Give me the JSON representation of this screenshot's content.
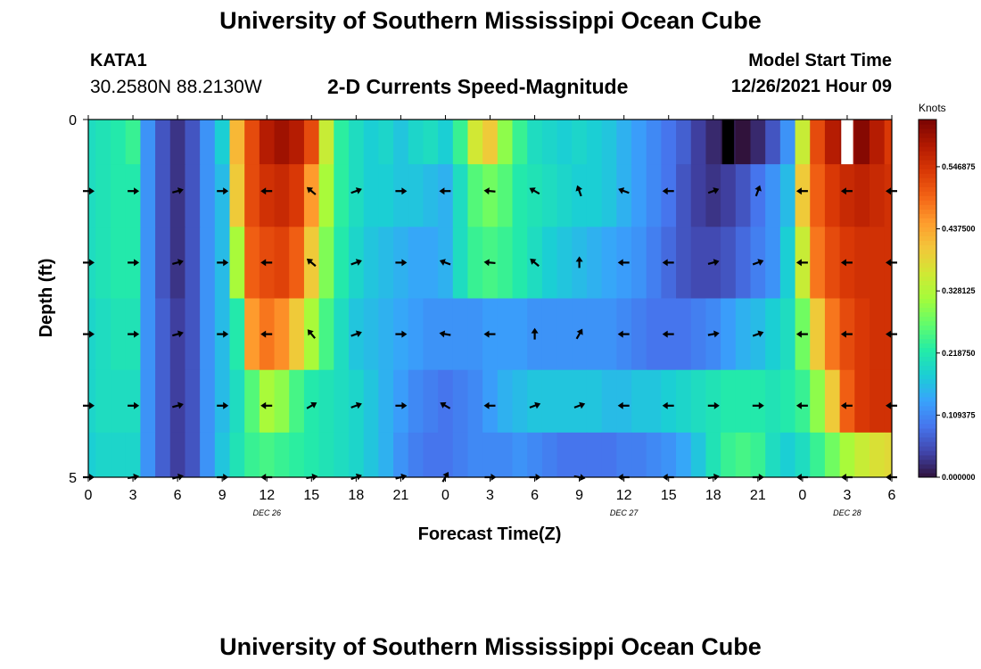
{
  "header": {
    "title": "University of Southern Mississippi Ocean Cube",
    "station": "KATA1",
    "coords": "30.2580N  88.2130W",
    "subtitle": "2-D Currents Speed-Magnitude",
    "model_start_label": "Model Start Time",
    "model_start_value": "12/26/2021 Hour 09",
    "footer_title": "University of Southern Mississippi Ocean Cube"
  },
  "chart_data": {
    "type": "heatmap",
    "title": "2-D Currents Speed-Magnitude",
    "xlabel": "Forecast Time(Z)",
    "ylabel": "Depth (ft)",
    "x_hours": [
      0,
      1,
      2,
      3,
      4,
      5,
      6,
      7,
      8,
      9,
      10,
      11,
      12,
      13,
      14,
      15,
      16,
      17,
      18,
      19,
      20,
      21,
      22,
      23,
      24,
      25,
      26,
      27,
      28,
      29,
      30,
      31,
      32,
      33,
      34,
      35,
      36,
      37,
      38,
      39,
      40,
      41,
      42,
      43,
      44,
      45,
      46,
      47,
      48,
      49,
      50,
      51,
      52,
      53,
      54
    ],
    "x_ticks": [
      {
        "hour": 0,
        "label": "0"
      },
      {
        "hour": 3,
        "label": "3"
      },
      {
        "hour": 6,
        "label": "6"
      },
      {
        "hour": 9,
        "label": "9"
      },
      {
        "hour": 12,
        "label": "12"
      },
      {
        "hour": 15,
        "label": "15"
      },
      {
        "hour": 18,
        "label": "18"
      },
      {
        "hour": 21,
        "label": "21"
      },
      {
        "hour": 24,
        "label": "0"
      },
      {
        "hour": 27,
        "label": "3"
      },
      {
        "hour": 30,
        "label": "6"
      },
      {
        "hour": 33,
        "label": "9"
      },
      {
        "hour": 36,
        "label": "12"
      },
      {
        "hour": 39,
        "label": "15"
      },
      {
        "hour": 42,
        "label": "18"
      },
      {
        "hour": 45,
        "label": "21"
      },
      {
        "hour": 48,
        "label": "0"
      },
      {
        "hour": 51,
        "label": "3"
      },
      {
        "hour": 54,
        "label": "6"
      }
    ],
    "date_labels": [
      {
        "hour": 12,
        "label": "DEC 26"
      },
      {
        "hour": 36,
        "label": "DEC 27"
      },
      {
        "hour": 51,
        "label": "DEC 28"
      }
    ],
    "y_ticks": [
      {
        "depth": 0,
        "label": "0"
      },
      {
        "depth": 5,
        "label": "5"
      }
    ],
    "ylim": [
      0,
      5
    ],
    "depth_rows": [
      0.25,
      1,
      2,
      3,
      4,
      4.75
    ],
    "speed_knots": [
      [
        0.2,
        0.21,
        0.22,
        0.24,
        0.12,
        0.06,
        0.03,
        0.06,
        0.12,
        0.18,
        0.42,
        0.52,
        0.58,
        0.6,
        0.58,
        0.52,
        0.35,
        0.23,
        0.2,
        0.18,
        0.19,
        0.17,
        0.19,
        0.2,
        0.18,
        0.24,
        0.36,
        0.4,
        0.3,
        0.24,
        0.2,
        0.19,
        0.18,
        0.19,
        0.18,
        0.17,
        0.15,
        0.13,
        0.11,
        0.09,
        0.07,
        0.04,
        0.02,
        0.01,
        0.0,
        0.02,
        0.06,
        0.12,
        0.35,
        0.52,
        0.58,
        0.6,
        0.62,
        0.58,
        0.54
      ],
      [
        0.2,
        0.21,
        0.22,
        0.22,
        0.12,
        0.06,
        0.03,
        0.06,
        0.12,
        0.16,
        0.4,
        0.52,
        0.55,
        0.56,
        0.54,
        0.45,
        0.32,
        0.23,
        0.2,
        0.18,
        0.18,
        0.17,
        0.17,
        0.16,
        0.15,
        0.2,
        0.26,
        0.28,
        0.26,
        0.22,
        0.21,
        0.2,
        0.19,
        0.18,
        0.18,
        0.17,
        0.15,
        0.13,
        0.11,
        0.09,
        0.06,
        0.04,
        0.03,
        0.04,
        0.06,
        0.09,
        0.12,
        0.16,
        0.4,
        0.5,
        0.54,
        0.56,
        0.57,
        0.56,
        0.55
      ],
      [
        0.2,
        0.21,
        0.22,
        0.22,
        0.12,
        0.06,
        0.03,
        0.06,
        0.12,
        0.16,
        0.32,
        0.5,
        0.52,
        0.53,
        0.5,
        0.4,
        0.29,
        0.22,
        0.19,
        0.17,
        0.16,
        0.15,
        0.14,
        0.14,
        0.15,
        0.2,
        0.24,
        0.25,
        0.24,
        0.22,
        0.2,
        0.18,
        0.17,
        0.16,
        0.15,
        0.14,
        0.13,
        0.12,
        0.1,
        0.08,
        0.06,
        0.05,
        0.05,
        0.06,
        0.08,
        0.1,
        0.12,
        0.18,
        0.35,
        0.48,
        0.52,
        0.54,
        0.55,
        0.55,
        0.55
      ],
      [
        0.19,
        0.2,
        0.21,
        0.21,
        0.12,
        0.07,
        0.04,
        0.06,
        0.12,
        0.16,
        0.22,
        0.45,
        0.48,
        0.46,
        0.4,
        0.32,
        0.25,
        0.2,
        0.17,
        0.16,
        0.15,
        0.14,
        0.13,
        0.12,
        0.12,
        0.12,
        0.12,
        0.13,
        0.13,
        0.13,
        0.12,
        0.12,
        0.12,
        0.12,
        0.12,
        0.12,
        0.11,
        0.1,
        0.09,
        0.09,
        0.09,
        0.1,
        0.11,
        0.13,
        0.15,
        0.16,
        0.18,
        0.2,
        0.28,
        0.4,
        0.48,
        0.52,
        0.54,
        0.55,
        0.55
      ],
      [
        0.19,
        0.2,
        0.2,
        0.2,
        0.12,
        0.07,
        0.04,
        0.06,
        0.12,
        0.16,
        0.2,
        0.26,
        0.32,
        0.3,
        0.25,
        0.22,
        0.21,
        0.2,
        0.19,
        0.17,
        0.15,
        0.13,
        0.11,
        0.1,
        0.09,
        0.1,
        0.11,
        0.13,
        0.15,
        0.16,
        0.17,
        0.17,
        0.17,
        0.17,
        0.17,
        0.16,
        0.16,
        0.17,
        0.17,
        0.18,
        0.19,
        0.2,
        0.21,
        0.22,
        0.22,
        0.22,
        0.21,
        0.22,
        0.24,
        0.3,
        0.4,
        0.5,
        0.54,
        0.55,
        0.55
      ],
      [
        0.18,
        0.19,
        0.19,
        0.19,
        0.12,
        0.07,
        0.04,
        0.06,
        0.12,
        0.17,
        0.21,
        0.24,
        0.25,
        0.24,
        0.23,
        0.22,
        0.21,
        0.2,
        0.19,
        0.17,
        0.15,
        0.12,
        0.1,
        0.09,
        0.09,
        0.1,
        0.11,
        0.11,
        0.11,
        0.12,
        0.11,
        0.1,
        0.09,
        0.09,
        0.09,
        0.09,
        0.1,
        0.1,
        0.11,
        0.12,
        0.14,
        0.17,
        0.21,
        0.24,
        0.25,
        0.24,
        0.2,
        0.18,
        0.2,
        0.24,
        0.28,
        0.32,
        0.35,
        0.37,
        0.38
      ]
    ],
    "missing_cells": [
      {
        "hour": 43,
        "depth_row": 0,
        "color": "#000000"
      },
      {
        "hour": 51,
        "depth_row": 0,
        "color": "#ffffff"
      }
    ],
    "vector_hours": [
      0,
      3,
      6,
      9,
      12,
      15,
      18,
      21,
      24,
      27,
      30,
      33,
      36,
      39,
      42,
      45,
      48,
      51,
      54
    ],
    "vector_depths": [
      1,
      2,
      3,
      4,
      5
    ],
    "vector_directions_deg": [
      [
        90,
        90,
        75,
        90,
        270,
        310,
        70,
        90,
        270,
        275,
        300,
        340,
        290,
        270,
        70,
        20,
        270,
        270,
        270
      ],
      [
        90,
        90,
        75,
        90,
        270,
        310,
        70,
        90,
        290,
        275,
        310,
        0,
        270,
        270,
        75,
        70,
        270,
        270,
        270
      ],
      [
        90,
        90,
        75,
        90,
        270,
        320,
        70,
        90,
        280,
        270,
        0,
        30,
        270,
        270,
        80,
        70,
        270,
        270,
        270
      ],
      [
        90,
        90,
        75,
        90,
        270,
        60,
        70,
        90,
        300,
        270,
        70,
        70,
        270,
        270,
        90,
        90,
        270,
        270,
        270
      ],
      [
        90,
        80,
        75,
        90,
        270,
        80,
        70,
        75,
        30,
        90,
        90,
        100,
        270,
        270,
        80,
        90,
        270,
        270,
        270
      ]
    ],
    "colorbar": {
      "title": "Knots",
      "range": [
        0,
        0.63
      ],
      "ticks": [
        "0.000000",
        "0.109375",
        "0.218750",
        "0.328125",
        "0.437500",
        "0.546875"
      ],
      "tick_values": [
        0,
        0.109375,
        0.21875,
        0.328125,
        0.4375,
        0.546875
      ],
      "colormap": [
        "#30123b",
        "#4145ab",
        "#4675ed",
        "#39a2fc",
        "#1bcfd4",
        "#24eca6",
        "#61fc6c",
        "#a4fc3b",
        "#d1e834",
        "#f3c63a",
        "#fe9b2d",
        "#f36315",
        "#d93806",
        "#b11901",
        "#7a0402"
      ]
    }
  }
}
